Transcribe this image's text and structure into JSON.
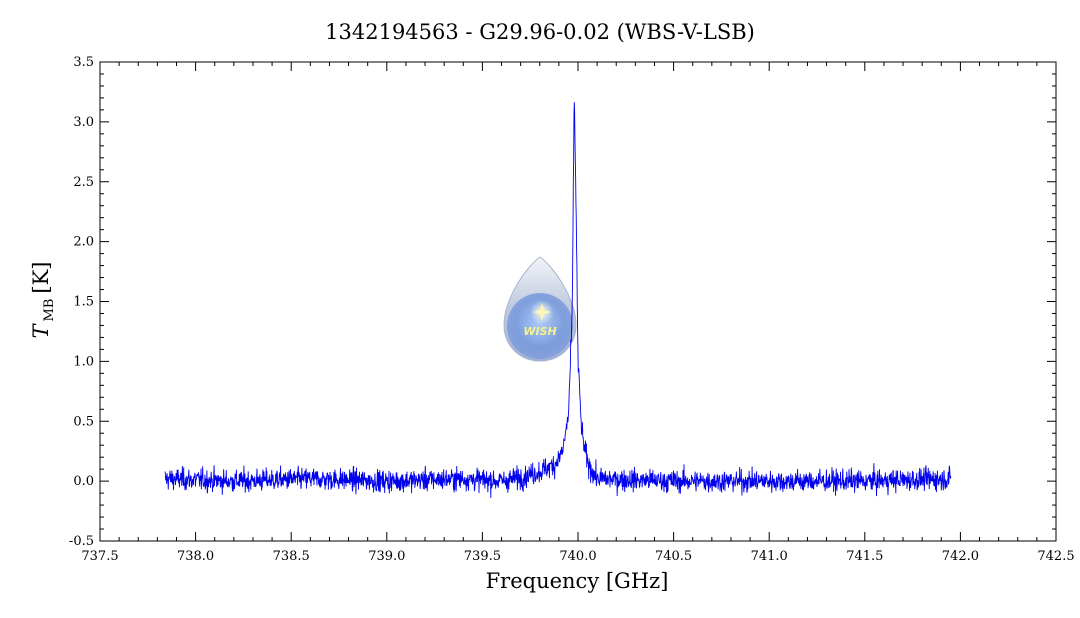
{
  "chart_data": {
    "type": "line",
    "title": "1342194563 - G29.96-0.02 (WBS-V-LSB)",
    "xlabel": "Frequency [GHz]",
    "ylabel_symbol": "T",
    "ylabel_sub": "MB",
    "ylabel_unit": "[K]",
    "xlim": [
      737.5,
      742.5
    ],
    "ylim": [
      -0.5,
      3.5
    ],
    "x_ticks": [
      "737.5",
      "738.0",
      "738.5",
      "739.0",
      "739.5",
      "740.0",
      "740.5",
      "741.0",
      "741.5",
      "742.0",
      "742.5"
    ],
    "y_ticks": [
      "-0.5",
      "0.0",
      "0.5",
      "1.0",
      "1.5",
      "2.0",
      "2.5",
      "3.0",
      "3.5"
    ],
    "series_color": "#0000ee",
    "x_range_data": [
      737.84,
      741.95
    ],
    "noise_rms": 0.065,
    "baseline_points": [
      [
        737.84,
        0.02
      ],
      [
        738.2,
        0.0
      ],
      [
        738.6,
        0.02
      ],
      [
        739.0,
        0.0
      ],
      [
        739.4,
        0.02
      ],
      [
        739.6,
        0.0
      ],
      [
        739.7,
        0.03
      ],
      [
        739.8,
        0.08
      ],
      [
        739.88,
        0.14
      ],
      [
        739.92,
        0.25
      ],
      [
        739.95,
        0.55
      ],
      [
        739.97,
        1.4
      ],
      [
        739.98,
        3.25
      ],
      [
        739.99,
        2.3
      ],
      [
        740.0,
        1.0
      ],
      [
        740.02,
        0.4
      ],
      [
        740.05,
        0.15
      ],
      [
        740.1,
        0.02
      ],
      [
        740.5,
        0.0
      ],
      [
        741.0,
        0.0
      ],
      [
        741.5,
        0.0
      ],
      [
        741.95,
        0.02
      ]
    ],
    "grid": false,
    "legend": "none"
  },
  "logo": {
    "text": "WISH"
  }
}
